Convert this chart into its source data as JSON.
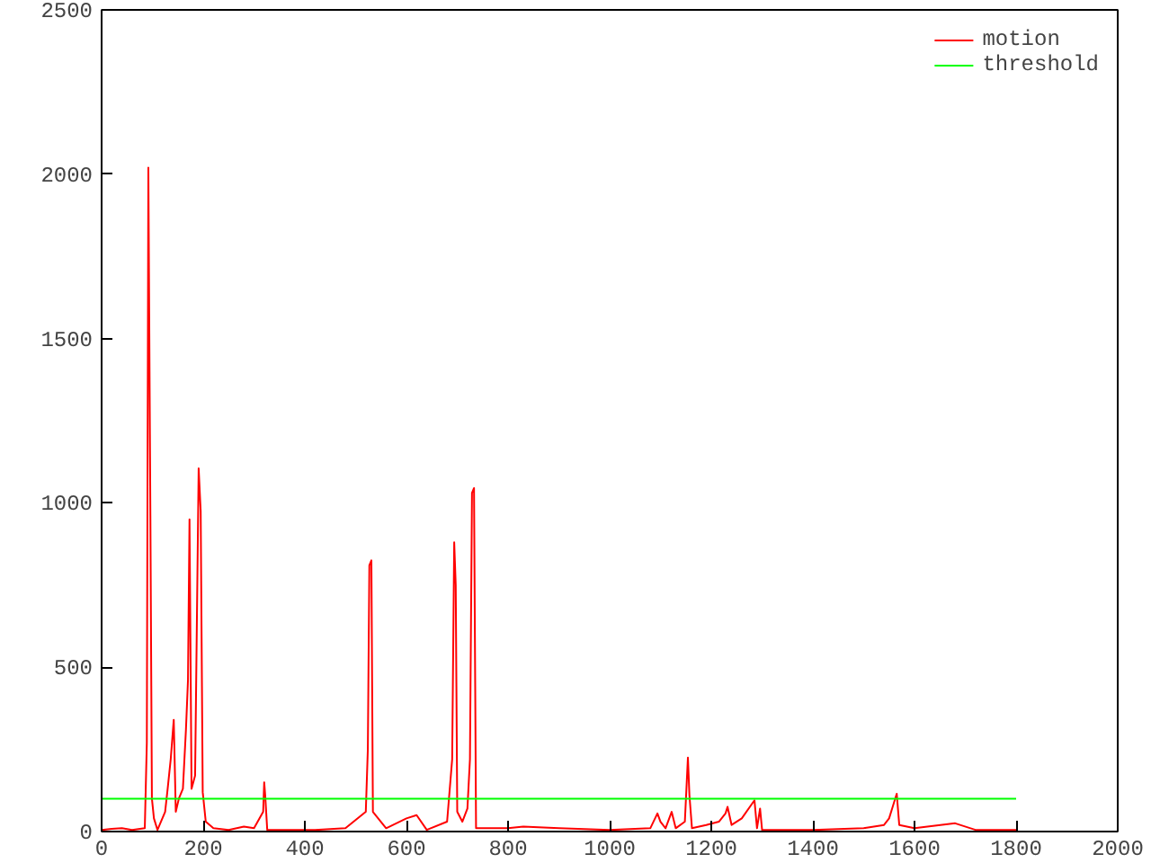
{
  "chart_data": {
    "type": "line",
    "xlim": [
      0,
      2000
    ],
    "ylim": [
      0,
      2500
    ],
    "xticks": [
      0,
      200,
      400,
      600,
      800,
      1000,
      1200,
      1400,
      1600,
      1800,
      2000
    ],
    "yticks": [
      0,
      500,
      1000,
      1500,
      2000,
      2500
    ],
    "grid": false,
    "legend": "top right",
    "series": [
      {
        "name": "motion",
        "color": "#ff0000",
        "x": [
          0,
          20,
          40,
          60,
          85,
          89,
          92,
          96,
          99,
          103,
          110,
          125,
          130,
          136,
          142,
          146,
          152,
          160,
          166,
          170,
          173,
          177,
          184,
          191,
          195,
          199,
          205,
          220,
          250,
          280,
          300,
          318,
          320,
          322,
          326,
          380,
          420,
          480,
          520,
          524,
          527,
          531,
          534,
          560,
          600,
          620,
          640,
          680,
          690,
          694,
          697,
          700,
          710,
          720,
          725,
          729,
          733,
          737,
          800,
          830,
          900,
          1000,
          1080,
          1094,
          1100,
          1110,
          1122,
          1130,
          1148,
          1154,
          1157,
          1162,
          1190,
          1215,
          1228,
          1232,
          1240,
          1260,
          1285,
          1290,
          1296,
          1300,
          1400,
          1500,
          1540,
          1550,
          1558,
          1565,
          1570,
          1600,
          1680,
          1720,
          1800
        ],
        "values": [
          5,
          8,
          10,
          5,
          10,
          270,
          2020,
          960,
          100,
          40,
          5,
          60,
          130,
          220,
          340,
          60,
          100,
          130,
          310,
          460,
          950,
          130,
          170,
          1105,
          975,
          120,
          30,
          10,
          5,
          15,
          10,
          60,
          150,
          110,
          5,
          5,
          5,
          10,
          60,
          250,
          810,
          825,
          60,
          10,
          40,
          50,
          5,
          30,
          220,
          880,
          750,
          60,
          30,
          70,
          220,
          1030,
          1045,
          10,
          10,
          15,
          10,
          5,
          10,
          55,
          30,
          10,
          60,
          10,
          30,
          225,
          110,
          10,
          20,
          30,
          55,
          75,
          20,
          40,
          95,
          10,
          70,
          5,
          5,
          10,
          20,
          40,
          80,
          115,
          20,
          10,
          25,
          5,
          5
        ]
      },
      {
        "name": "threshold",
        "color": "#00ff00",
        "x": [
          0,
          1800
        ],
        "values": [
          100,
          100
        ]
      }
    ]
  }
}
